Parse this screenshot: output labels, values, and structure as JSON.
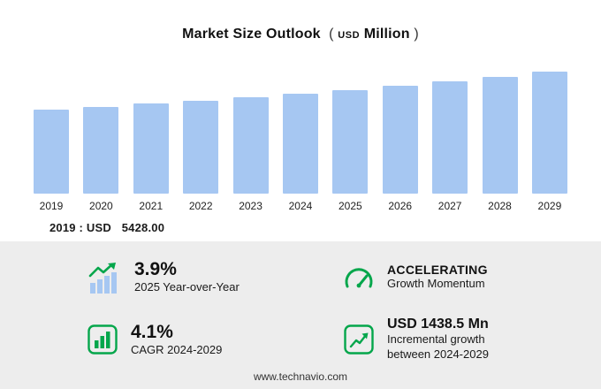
{
  "title": {
    "main": "Market Size Outlook",
    "paren_open": "(",
    "currency": "USD",
    "unit": "Million",
    "paren_close": ")"
  },
  "chart_data": {
    "type": "bar",
    "categories": [
      "2019",
      "2020",
      "2021",
      "2022",
      "2023",
      "2024",
      "2025",
      "2026",
      "2027",
      "2028",
      "2029"
    ],
    "values": [
      5428,
      5614,
      5806,
      6005,
      6224,
      6462,
      6714,
      6976,
      7252,
      7544,
      7900
    ],
    "title": "Market Size Outlook (USD Million)",
    "xlabel": "",
    "ylabel": "USD Million",
    "ylim": [
      0,
      8000
    ],
    "bar_color": "#a6c7f2",
    "grid": false,
    "legend": false
  },
  "annotation": {
    "label": "2019 : USD",
    "value": "5428.00"
  },
  "stats": {
    "yoy": {
      "value": "3.9%",
      "label": "2025 Year-over-Year",
      "icon": "bar-growth-arrow-icon"
    },
    "momentum": {
      "value": "ACCELERATING",
      "label": "Growth Momentum",
      "icon": "gauge-icon"
    },
    "cagr": {
      "value": "4.1%",
      "label": "CAGR 2024-2029",
      "icon": "bar-chart-box-icon"
    },
    "incremental": {
      "value": "USD 1438.5 Mn",
      "label_line1": "Incremental growth",
      "label_line2": "between 2024-2029",
      "icon": "line-growth-box-icon"
    }
  },
  "footer": {
    "url": "www.technavio.com"
  },
  "colors": {
    "bar": "#a6c7f2",
    "green": "#04a64b",
    "panel": "#ededed"
  }
}
